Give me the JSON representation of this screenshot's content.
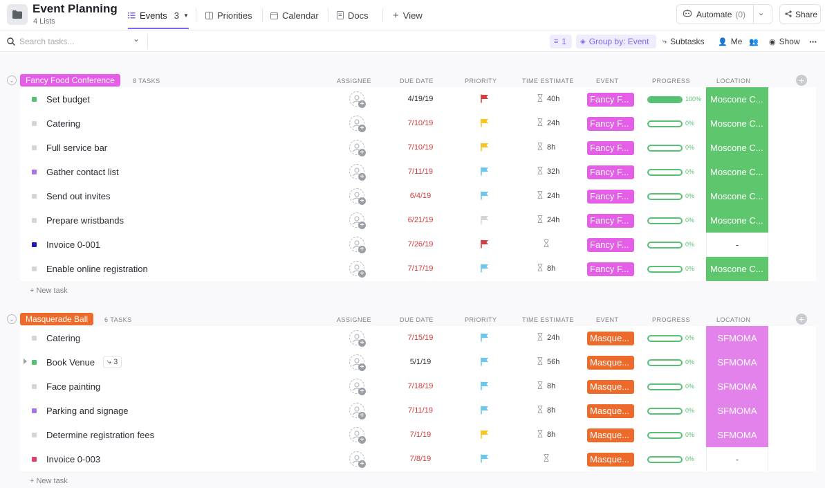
{
  "header": {
    "title": "Event Planning",
    "subtitle": "4 Lists",
    "tabs": [
      {
        "label": "Events",
        "count": "3"
      },
      {
        "label": "Priorities"
      },
      {
        "label": "Calendar"
      },
      {
        "label": "Docs"
      },
      {
        "label": "View"
      }
    ],
    "automate_label": "Automate",
    "automate_count": "(0)",
    "share_label": "Share"
  },
  "toolbar": {
    "search_placeholder": "Search tasks...",
    "filter_count": "1",
    "group_by": "Group by: Event",
    "subtasks": "Subtasks",
    "me": "Me",
    "show": "Show"
  },
  "columns": [
    "ASSIGNEE",
    "DUE DATE",
    "PRIORITY",
    "TIME ESTIMATE",
    "EVENT",
    "PROGRESS",
    "LOCATION"
  ],
  "colors": {
    "accent": "#7b68ee",
    "progress": "#56c271",
    "location_green": "#5ec66d",
    "location_pink": "#e482ec",
    "event_fancy": "#e45ee8",
    "event_masq": "#ee6a2a",
    "overdue": "#d53a3a"
  },
  "groups": [
    {
      "name": "Fancy Food Conference",
      "count_label": "8 TASKS",
      "color": "#e45ee8",
      "new_task": "+ New task",
      "tasks": [
        {
          "name": "Set budget",
          "dot": "#56c271",
          "due": "4/19/19",
          "due_color": "#292d34",
          "flag": "#d33d3d",
          "estimate": "40h",
          "event": "Fancy F...",
          "progress": 100,
          "pct": "100%",
          "location": "Moscone C..."
        },
        {
          "name": "Catering",
          "dot": "#d3d5d9",
          "due": "7/10/19",
          "due_color": "#d53a3a",
          "flag": "#f7c421",
          "estimate": "24h",
          "event": "Fancy F...",
          "progress": 0,
          "pct": "0%",
          "location": "Moscone C..."
        },
        {
          "name": "Full service bar",
          "dot": "#d3d5d9",
          "due": "7/10/19",
          "due_color": "#d53a3a",
          "flag": "#f7c421",
          "estimate": "8h",
          "event": "Fancy F...",
          "progress": 0,
          "pct": "0%",
          "location": "Moscone C..."
        },
        {
          "name": "Gather contact list",
          "dot": "#a875e8",
          "due": "7/11/19",
          "due_color": "#d53a3a",
          "flag": "#6bc6ed",
          "estimate": "32h",
          "event": "Fancy F...",
          "progress": 0,
          "pct": "0%",
          "location": "Moscone C..."
        },
        {
          "name": "Send out invites",
          "dot": "#d3d5d9",
          "due": "6/4/19",
          "due_color": "#d53a3a",
          "flag": "#6bc6ed",
          "estimate": "24h",
          "event": "Fancy F...",
          "progress": 0,
          "pct": "0%",
          "location": "Moscone C..."
        },
        {
          "name": "Prepare wristbands",
          "dot": "#d3d5d9",
          "due": "6/21/19",
          "due_color": "#d53a3a",
          "flag": "#d3d5d9",
          "estimate": "24h",
          "event": "Fancy F...",
          "progress": 0,
          "pct": "0%",
          "location": "Moscone C..."
        },
        {
          "name": "Invoice 0-001",
          "dot": "#1c1cb8",
          "due": "7/26/19",
          "due_color": "#d53a3a",
          "flag": "#d33d3d",
          "estimate": "",
          "event": "Fancy F...",
          "progress": 0,
          "pct": "0%",
          "location": "-"
        },
        {
          "name": "Enable online registration",
          "dot": "#d3d5d9",
          "due": "7/17/19",
          "due_color": "#d53a3a",
          "flag": "#6bc6ed",
          "estimate": "8h",
          "event": "Fancy F...",
          "progress": 0,
          "pct": "0%",
          "location": "Moscone C..."
        }
      ]
    },
    {
      "name": "Masquerade Ball",
      "count_label": "6 TASKS",
      "color": "#ee6a2a",
      "new_task": "+ New task",
      "tasks": [
        {
          "name": "Catering",
          "dot": "#d3d5d9",
          "due": "7/15/19",
          "due_color": "#d53a3a",
          "flag": "#6bc6ed",
          "estimate": "24h",
          "event": "Masque...",
          "progress": 0,
          "pct": "0%",
          "location": "SFMOMA"
        },
        {
          "name": "Book Venue",
          "dot": "#56c271",
          "due": "5/1/19",
          "due_color": "#292d34",
          "flag": "#6bc6ed",
          "estimate": "56h",
          "event": "Masque...",
          "progress": 0,
          "pct": "0%",
          "location": "SFMOMA",
          "subtasks": "3",
          "expandable": true
        },
        {
          "name": "Face painting",
          "dot": "#d3d5d9",
          "due": "7/18/19",
          "due_color": "#d53a3a",
          "flag": "#6bc6ed",
          "estimate": "8h",
          "event": "Masque...",
          "progress": 0,
          "pct": "0%",
          "location": "SFMOMA"
        },
        {
          "name": "Parking and signage",
          "dot": "#a875e8",
          "due": "7/11/19",
          "due_color": "#d53a3a",
          "flag": "#6bc6ed",
          "estimate": "8h",
          "event": "Masque...",
          "progress": 0,
          "pct": "0%",
          "location": "SFMOMA"
        },
        {
          "name": "Determine registration fees",
          "dot": "#d3d5d9",
          "due": "7/1/19",
          "due_color": "#d53a3a",
          "flag": "#f7c421",
          "estimate": "8h",
          "event": "Masque...",
          "progress": 0,
          "pct": "0%",
          "location": "SFMOMA"
        },
        {
          "name": "Invoice 0-003",
          "dot": "#e0416a",
          "due": "7/8/19",
          "due_color": "#d53a3a",
          "flag": "#6bc6ed",
          "estimate": "",
          "event": "Masque...",
          "progress": 0,
          "pct": "0%",
          "location": "-"
        }
      ]
    }
  ]
}
